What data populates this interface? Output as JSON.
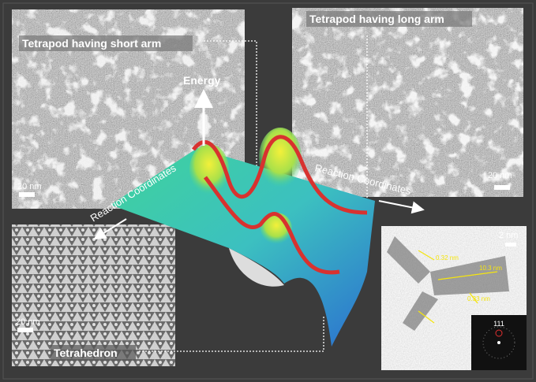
{
  "panels": {
    "short_arm": {
      "label": "Tetrapod having short arm",
      "scale": "20 nm"
    },
    "long_arm": {
      "label": "Tetrapod having long arm",
      "scale": "20 nm"
    },
    "tetrahedron": {
      "label": "Tetrahedron",
      "scale": "20 nm"
    },
    "hrtem": {
      "scale": "2 nm",
      "measurements": [
        "0.32 nm",
        "10.3 nm",
        "0.33 nm"
      ],
      "fft_label": "111"
    }
  },
  "axes": {
    "energy": "Energy",
    "reaction_coordinates": [
      "Reaction Coordinates",
      "Reaction Coordinates"
    ]
  }
}
